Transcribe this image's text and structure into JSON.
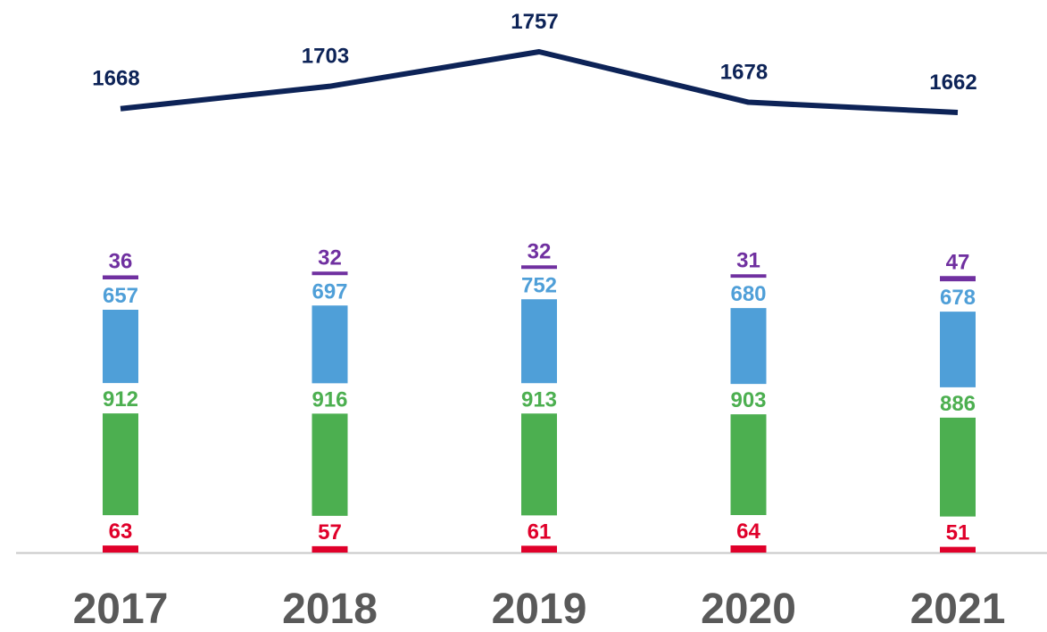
{
  "chart_data": [
    {
      "type": "bar",
      "categories": [
        "2017",
        "2018",
        "2019",
        "2020",
        "2021"
      ],
      "series": [
        {
          "color": "#e0002a",
          "values": [
            63,
            57,
            61,
            64,
            51
          ]
        },
        {
          "color": "#4caf50",
          "values": [
            912,
            916,
            913,
            903,
            886
          ]
        },
        {
          "color": "#4f9fd8",
          "values": [
            657,
            697,
            752,
            680,
            678
          ]
        },
        {
          "color": "#7030a0",
          "values": [
            36,
            32,
            32,
            31,
            47
          ]
        }
      ]
    },
    {
      "type": "line",
      "color": "#0d2357",
      "values": [
        1668,
        1703,
        1757,
        1678,
        1662
      ]
    }
  ]
}
